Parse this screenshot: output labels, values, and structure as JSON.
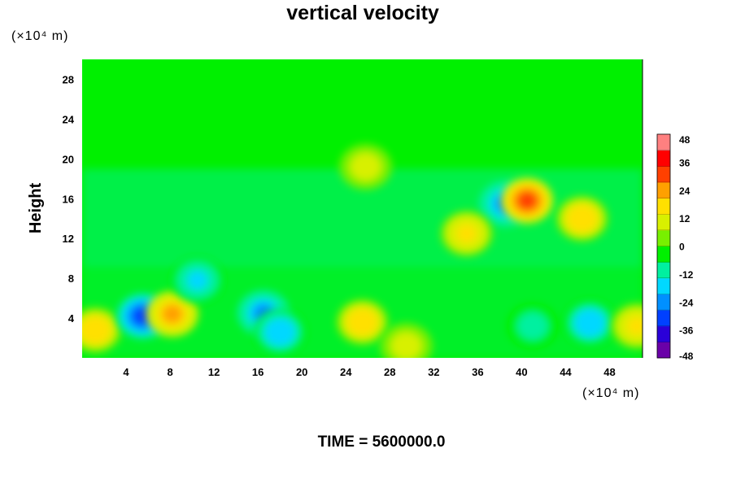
{
  "chart_data": {
    "type": "heatmap",
    "title": "vertical velocity",
    "ylabel": "Height",
    "xlabel": "",
    "x_unit": "(×10⁴ m)",
    "y_unit": "(×10⁴ m)",
    "xlim": [
      0,
      51
    ],
    "ylim": [
      0,
      30
    ],
    "x_ticks": [
      4,
      8,
      12,
      16,
      20,
      24,
      28,
      32,
      36,
      40,
      44,
      48
    ],
    "y_ticks": [
      4,
      8,
      12,
      16,
      20,
      24,
      28
    ],
    "colorbar": {
      "min": -48,
      "max": 48,
      "ticks": [
        48,
        36,
        24,
        12,
        0,
        -12,
        -24,
        -36,
        -48
      ],
      "colors": [
        "#6a00a8",
        "#2a00d8",
        "#0040ff",
        "#0090ff",
        "#00d8ff",
        "#00f0a0",
        "#00f000",
        "#78f000",
        "#d8f000",
        "#ffe000",
        "#ffa000",
        "#ff4000",
        "#ff0000",
        "#ff8080"
      ]
    },
    "features": [
      {
        "x": 1.2,
        "y": 2.8,
        "value": 22
      },
      {
        "x": 5.5,
        "y": 4.2,
        "value": -34
      },
      {
        "x": 8.2,
        "y": 4.4,
        "value": 30
      },
      {
        "x": 10.5,
        "y": 7.8,
        "value": -18
      },
      {
        "x": 16.5,
        "y": 4.5,
        "value": -28
      },
      {
        "x": 18.0,
        "y": 2.6,
        "value": -22
      },
      {
        "x": 25.5,
        "y": 3.6,
        "value": 24
      },
      {
        "x": 29.5,
        "y": 1.2,
        "value": 12
      },
      {
        "x": 38.5,
        "y": 15.5,
        "value": -30
      },
      {
        "x": 40.5,
        "y": 15.8,
        "value": 38
      },
      {
        "x": 45.5,
        "y": 14.0,
        "value": 24
      },
      {
        "x": 46.2,
        "y": 3.5,
        "value": -24
      },
      {
        "x": 41.0,
        "y": 3.2,
        "value": -14
      },
      {
        "x": 50.5,
        "y": 3.2,
        "value": 18
      },
      {
        "x": 25.8,
        "y": 19.2,
        "value": 12
      },
      {
        "x": 35.0,
        "y": 12.5,
        "value": 20
      }
    ]
  },
  "footer": {
    "time_label": "TIME = 5600000.0"
  }
}
